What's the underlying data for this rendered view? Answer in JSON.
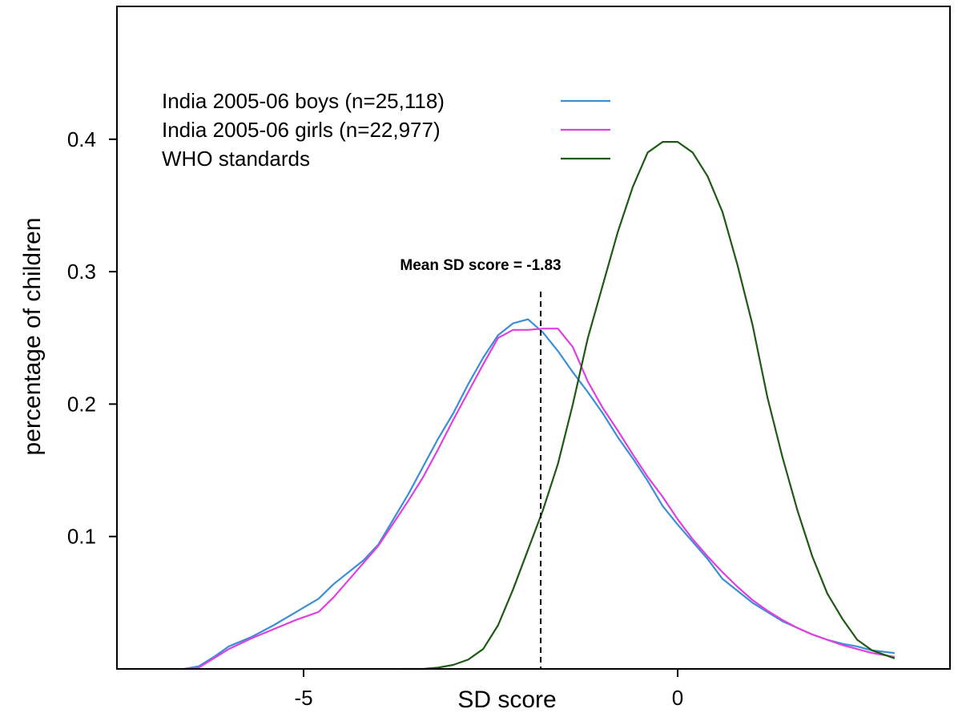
{
  "chart_data": {
    "type": "line",
    "title": "",
    "xlabel": "SD score",
    "ylabel": "percentage of children",
    "xlim": [
      -10,
      2.9
    ],
    "ylim": [
      0,
      0.5
    ],
    "x_ticks": [
      {
        "value": -5,
        "label": "-5"
      },
      {
        "value": 0,
        "label": "0"
      }
    ],
    "y_ticks": [
      {
        "value": 0.1,
        "label": "0.1"
      },
      {
        "value": 0.2,
        "label": "0.2"
      },
      {
        "value": 0.3,
        "label": "0.3"
      },
      {
        "value": 0.4,
        "label": "0.4"
      }
    ],
    "grid": false,
    "legend_position": "top-left",
    "series": [
      {
        "name": "India 2005-06 boys (n=25,118)",
        "color": "#3a8fd6",
        "points": [
          [
            -6.6,
            0.0
          ],
          [
            -6.4,
            0.002
          ],
          [
            -6.2,
            0.009
          ],
          [
            -6.0,
            0.017
          ],
          [
            -5.7,
            0.024
          ],
          [
            -5.4,
            0.033
          ],
          [
            -5.1,
            0.043
          ],
          [
            -4.8,
            0.053
          ],
          [
            -4.6,
            0.064
          ],
          [
            -4.2,
            0.082
          ],
          [
            -4.0,
            0.094
          ],
          [
            -3.8,
            0.113
          ],
          [
            -3.6,
            0.132
          ],
          [
            -3.4,
            0.153
          ],
          [
            -3.2,
            0.174
          ],
          [
            -3.0,
            0.193
          ],
          [
            -2.8,
            0.215
          ],
          [
            -2.6,
            0.235
          ],
          [
            -2.4,
            0.252
          ],
          [
            -2.2,
            0.261
          ],
          [
            -2.0,
            0.264
          ],
          [
            -1.8,
            0.254
          ],
          [
            -1.6,
            0.24
          ],
          [
            -1.4,
            0.224
          ],
          [
            -1.2,
            0.209
          ],
          [
            -1.0,
            0.193
          ],
          [
            -0.8,
            0.175
          ],
          [
            -0.6,
            0.159
          ],
          [
            -0.4,
            0.142
          ],
          [
            -0.2,
            0.123
          ],
          [
            0.0,
            0.109
          ],
          [
            0.2,
            0.096
          ],
          [
            0.4,
            0.083
          ],
          [
            0.6,
            0.068
          ],
          [
            0.8,
            0.059
          ],
          [
            1.0,
            0.05
          ],
          [
            1.2,
            0.043
          ],
          [
            1.4,
            0.036
          ],
          [
            1.6,
            0.031
          ],
          [
            1.8,
            0.026
          ],
          [
            2.0,
            0.022
          ],
          [
            2.2,
            0.019
          ],
          [
            2.4,
            0.017
          ],
          [
            2.6,
            0.014
          ],
          [
            2.9,
            0.012
          ]
        ]
      },
      {
        "name": "India 2005-06 girls (n=22,977)",
        "color": "#e040e0",
        "points": [
          [
            -6.6,
            0.0
          ],
          [
            -6.4,
            0.001
          ],
          [
            -6.2,
            0.008
          ],
          [
            -6.0,
            0.015
          ],
          [
            -5.7,
            0.023
          ],
          [
            -5.4,
            0.03
          ],
          [
            -5.1,
            0.037
          ],
          [
            -4.8,
            0.043
          ],
          [
            -4.6,
            0.054
          ],
          [
            -4.2,
            0.08
          ],
          [
            -4.0,
            0.093
          ],
          [
            -3.8,
            0.11
          ],
          [
            -3.6,
            0.127
          ],
          [
            -3.4,
            0.145
          ],
          [
            -3.2,
            0.166
          ],
          [
            -3.0,
            0.188
          ],
          [
            -2.8,
            0.209
          ],
          [
            -2.6,
            0.23
          ],
          [
            -2.4,
            0.25
          ],
          [
            -2.2,
            0.256
          ],
          [
            -2.0,
            0.256
          ],
          [
            -1.8,
            0.257
          ],
          [
            -1.6,
            0.257
          ],
          [
            -1.4,
            0.243
          ],
          [
            -1.2,
            0.217
          ],
          [
            -1.0,
            0.197
          ],
          [
            -0.8,
            0.18
          ],
          [
            -0.6,
            0.162
          ],
          [
            -0.4,
            0.145
          ],
          [
            -0.2,
            0.13
          ],
          [
            0.0,
            0.113
          ],
          [
            0.2,
            0.098
          ],
          [
            0.4,
            0.085
          ],
          [
            0.6,
            0.073
          ],
          [
            0.8,
            0.062
          ],
          [
            1.0,
            0.052
          ],
          [
            1.2,
            0.044
          ],
          [
            1.4,
            0.037
          ],
          [
            1.6,
            0.031
          ],
          [
            1.8,
            0.026
          ],
          [
            2.0,
            0.022
          ],
          [
            2.2,
            0.018
          ],
          [
            2.4,
            0.015
          ],
          [
            2.6,
            0.012
          ],
          [
            2.9,
            0.009
          ]
        ]
      },
      {
        "name": "WHO standards",
        "color": "#1e5a14",
        "points": [
          [
            -3.7,
            0.0
          ],
          [
            -3.4,
            0.0
          ],
          [
            -3.2,
            0.001
          ],
          [
            -3.0,
            0.003
          ],
          [
            -2.8,
            0.007
          ],
          [
            -2.6,
            0.015
          ],
          [
            -2.4,
            0.033
          ],
          [
            -2.2,
            0.06
          ],
          [
            -2.0,
            0.09
          ],
          [
            -1.8,
            0.12
          ],
          [
            -1.6,
            0.155
          ],
          [
            -1.4,
            0.2
          ],
          [
            -1.2,
            0.25
          ],
          [
            -1.0,
            0.29
          ],
          [
            -0.8,
            0.33
          ],
          [
            -0.6,
            0.364
          ],
          [
            -0.4,
            0.39
          ],
          [
            -0.2,
            0.398
          ],
          [
            0.0,
            0.398
          ],
          [
            0.2,
            0.39
          ],
          [
            0.4,
            0.372
          ],
          [
            0.6,
            0.345
          ],
          [
            0.8,
            0.305
          ],
          [
            1.0,
            0.26
          ],
          [
            1.2,
            0.205
          ],
          [
            1.4,
            0.16
          ],
          [
            1.6,
            0.12
          ],
          [
            1.8,
            0.085
          ],
          [
            2.0,
            0.057
          ],
          [
            2.2,
            0.038
          ],
          [
            2.4,
            0.022
          ],
          [
            2.6,
            0.014
          ],
          [
            2.9,
            0.008
          ]
        ]
      }
    ],
    "annotations": [
      {
        "text": "Mean SD score = -1.83",
        "x": -1.83,
        "style": "dashed vertical line"
      }
    ]
  }
}
